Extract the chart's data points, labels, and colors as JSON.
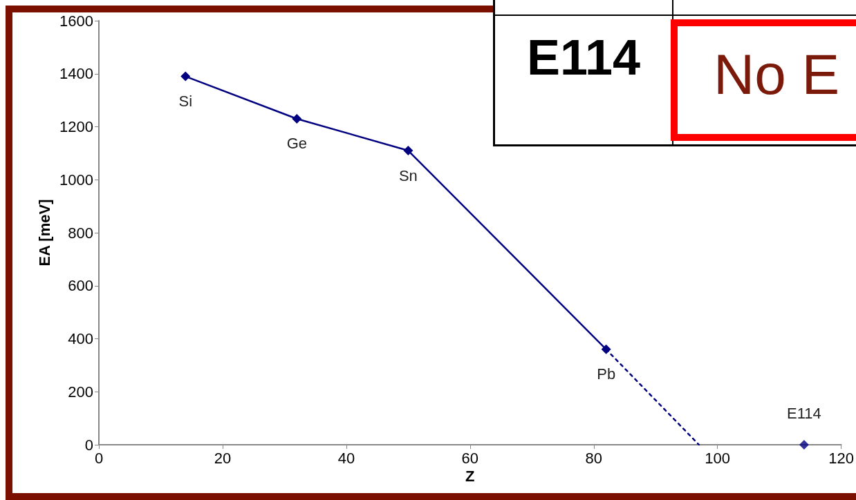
{
  "chart_data": {
    "type": "line",
    "xlabel": "Z",
    "ylabel": "EA [meV]",
    "xlim": [
      0,
      120
    ],
    "xticks": [
      0,
      20,
      40,
      60,
      80,
      100,
      120
    ],
    "ylim": [
      0,
      1600
    ],
    "yticks": [
      0,
      200,
      400,
      600,
      800,
      1000,
      1200,
      1400,
      1600
    ],
    "grid": false,
    "marker": "diamond",
    "series": [
      {
        "color": "#000080",
        "x": [
          14,
          32,
          50,
          82
        ],
        "values": [
          1390,
          1230,
          1110,
          360
        ],
        "line_style": "solid"
      },
      {
        "color": "#000080",
        "x": [
          82,
          97
        ],
        "values": [
          360,
          0
        ],
        "line_style": "dashed",
        "marker": "none"
      },
      {
        "type": "scatter",
        "color": "#000080",
        "x": [
          114
        ],
        "values": [
          0
        ]
      }
    ],
    "annotations": [
      {
        "text": "Si",
        "x": 14,
        "y": 1390
      },
      {
        "text": "Ge",
        "x": 32,
        "y": 1230
      },
      {
        "text": "Sn",
        "x": 50,
        "y": 1110
      },
      {
        "text": "Pb",
        "x": 82,
        "y": 360
      },
      {
        "text": "E114",
        "x": 114,
        "y": 0
      },
      "E114",
      "No E"
    ]
  }
}
